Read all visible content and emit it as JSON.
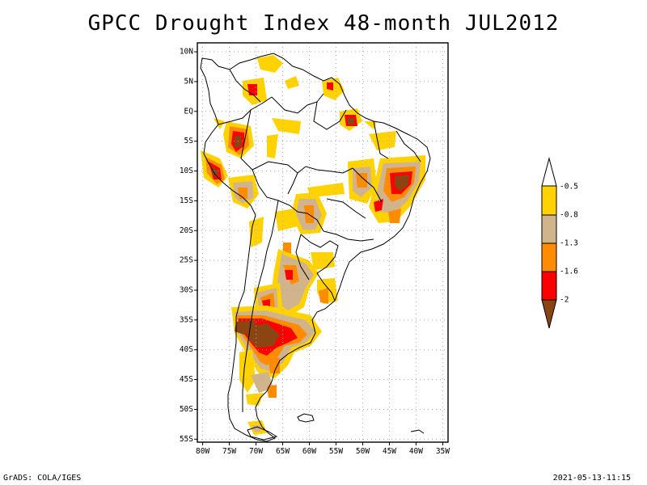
{
  "title": "GPCC Drought Index 48-month JUL2012",
  "map": {
    "lat_labels": [
      "10N",
      "5N",
      "EQ",
      "5S",
      "10S",
      "15S",
      "20S",
      "25S",
      "30S",
      "35S",
      "40S",
      "45S",
      "50S",
      "55S"
    ],
    "lon_labels": [
      "80W",
      "75W",
      "70W",
      "65W",
      "60W",
      "55W",
      "50W",
      "45W",
      "40W",
      "35W"
    ],
    "lat_range": [
      11.5,
      -55.5
    ],
    "lon_range": [
      -81,
      -34
    ],
    "grid": "dotted"
  },
  "legend": {
    "levels": [
      "-0.5",
      "-0.8",
      "-1.3",
      "-1.6",
      "-2"
    ],
    "colors": [
      "#ffffff",
      "#ffd200",
      "#d2b48c",
      "#ff8c00",
      "#ff0000",
      "#8b4513"
    ]
  },
  "footer": {
    "credit": "GrADS: COLA/IGES",
    "timestamp": "2021-05-13-11:15"
  }
}
